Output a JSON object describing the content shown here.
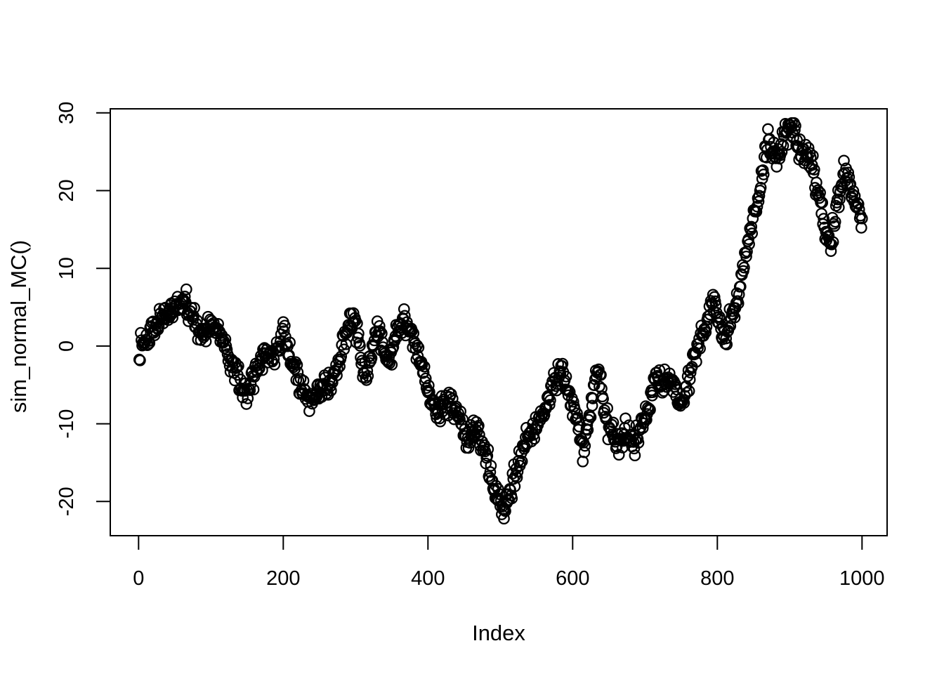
{
  "chart_data": {
    "type": "scatter",
    "title": "",
    "xlabel": "Index",
    "ylabel": "sim_normal_MC()",
    "marker": "open-circle",
    "point_color": "#000000",
    "background_color": "#ffffff",
    "axis_color": "#000000",
    "x_ticks": [
      0,
      200,
      400,
      600,
      800,
      1000
    ],
    "y_ticks": [
      -20,
      -10,
      0,
      10,
      20,
      30
    ],
    "xlim": [
      -40,
      1040
    ],
    "ylim": [
      -24.4,
      30.5
    ],
    "grid": false,
    "legend": "none",
    "n_points": 1000,
    "x_start_index": 1,
    "observed_max": 28.7,
    "observed_min": -22.2,
    "series_keypoints": {
      "description": "random-walk trajectory sampled every 5 index units, index 0..1000",
      "step": 5,
      "values": [
        -0.5,
        0.0,
        0.8,
        1.2,
        2.0,
        2.5,
        3.0,
        3.8,
        4.5,
        5.0,
        5.2,
        5.8,
        6.0,
        5.5,
        5.0,
        4.0,
        2.5,
        1.0,
        1.8,
        2.2,
        2.8,
        2.5,
        1.5,
        0.5,
        -0.5,
        -1.5,
        -2.2,
        -3.0,
        -4.5,
        -5.8,
        -5.5,
        -4.5,
        -3.5,
        -2.5,
        -1.8,
        -1.2,
        -1.0,
        -0.8,
        -0.5,
        0.0,
        2.0,
        1.0,
        -1.0,
        -2.5,
        -4.0,
        -5.0,
        -6.5,
        -7.0,
        -6.5,
        -6.8,
        -6.0,
        -5.0,
        -4.8,
        -5.2,
        -4.0,
        -2.5,
        -1.0,
        1.0,
        2.5,
        3.2,
        2.8,
        0.5,
        -2.5,
        -4.5,
        -2.0,
        1.0,
        2.5,
        1.0,
        -1.0,
        -1.5,
        -0.5,
        1.5,
        3.0,
        3.5,
        3.2,
        2.0,
        0.5,
        -0.8,
        -2.0,
        -3.5,
        -6.0,
        -7.5,
        -8.5,
        -8.0,
        -7.5,
        -7.0,
        -7.5,
        -8.0,
        -8.5,
        -9.5,
        -11.0,
        -13.0,
        -11.0,
        -10.5,
        -11.5,
        -12.5,
        -13.5,
        -15.5,
        -17.5,
        -19.0,
        -20.5,
        -21.8,
        -19.5,
        -18.0,
        -16.5,
        -15.5,
        -14.0,
        -12.5,
        -12.0,
        -11.5,
        -10.5,
        -9.5,
        -8.5,
        -7.5,
        -6.0,
        -4.5,
        -3.5,
        -3.2,
        -4.5,
        -6.0,
        -8.0,
        -9.5,
        -12.0,
        -13.5,
        -11.0,
        -8.0,
        -5.0,
        -3.0,
        -5.0,
        -8.0,
        -11.0,
        -11.5,
        -12.0,
        -12.5,
        -11.5,
        -11.0,
        -12.0,
        -12.5,
        -11.5,
        -10.5,
        -9.5,
        -8.0,
        -6.0,
        -3.5,
        -4.5,
        -5.0,
        -4.5,
        -4.0,
        -5.0,
        -6.0,
        -8.0,
        -6.5,
        -4.5,
        -2.5,
        -1.0,
        0.5,
        2.0,
        3.0,
        4.5,
        5.5,
        4.5,
        3.0,
        1.5,
        2.5,
        4.0,
        5.5,
        7.0,
        9.0,
        11.5,
        14.5,
        16.5,
        18.0,
        20.5,
        23.5,
        26.5,
        25.5,
        23.5,
        25.0,
        26.5,
        27.5,
        28.2,
        27.5,
        26.5,
        25.5,
        25.0,
        24.5,
        23.5,
        21.5,
        19.5,
        17.0,
        14.5,
        13.0,
        15.0,
        18.0,
        20.5,
        22.5,
        21.0,
        19.5,
        18.5,
        17.5,
        17.0
      ]
    }
  }
}
